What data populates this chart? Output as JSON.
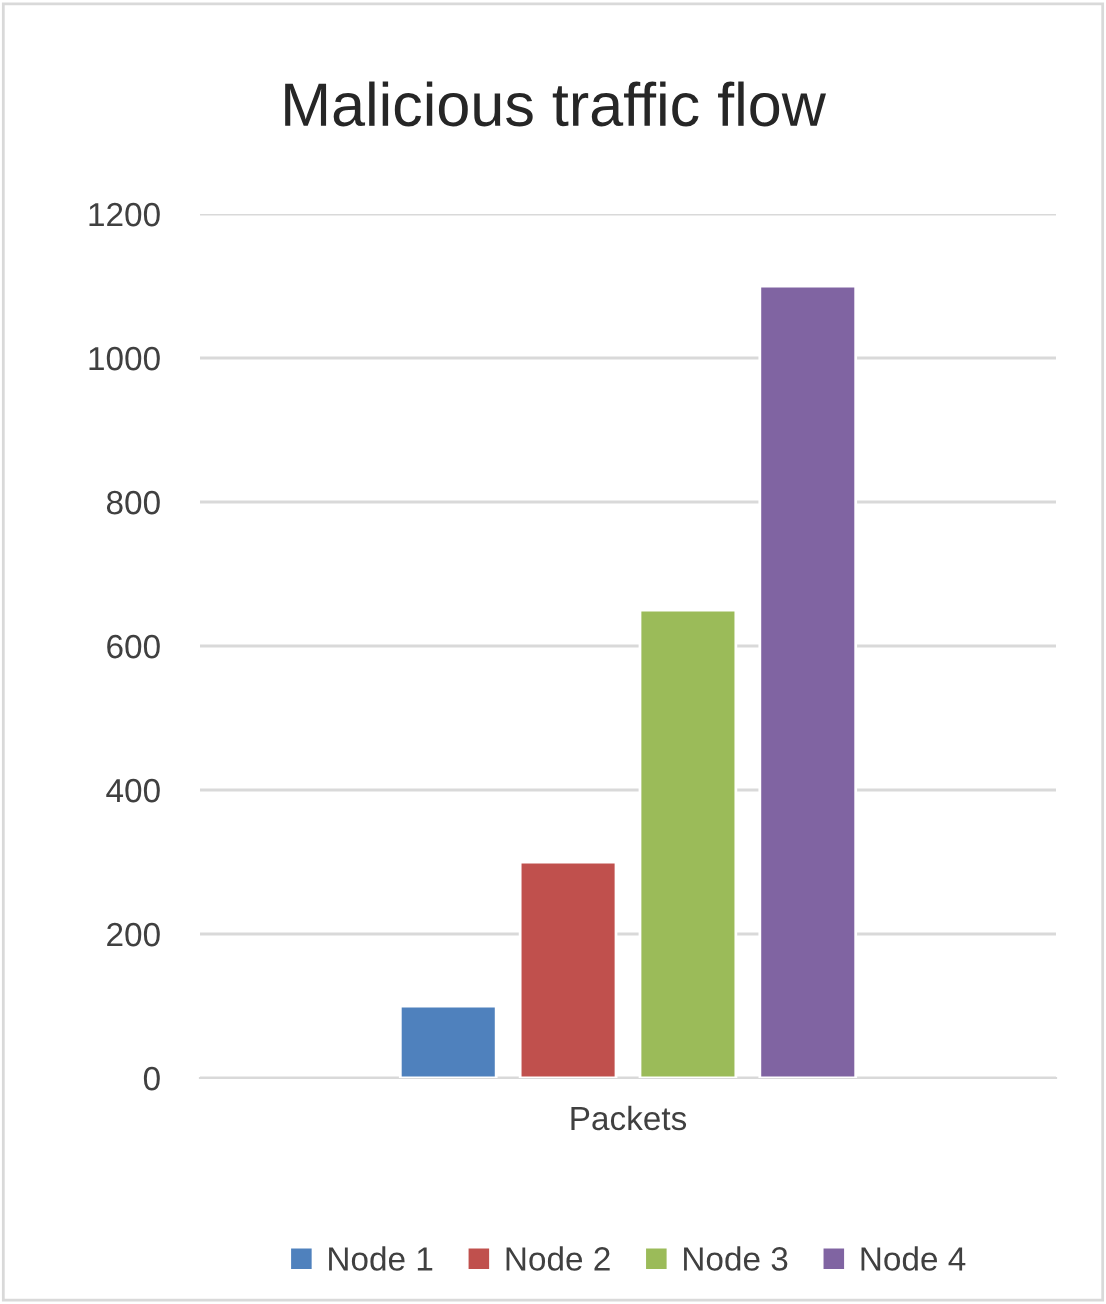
{
  "chart_data": {
    "type": "bar",
    "title": "Malicious traffic flow",
    "categories": [
      "Packets"
    ],
    "series": [
      {
        "name": "Node 1",
        "color": "#4f81bd",
        "values": [
          100
        ]
      },
      {
        "name": "Node 2",
        "color": "#c0504d",
        "values": [
          300
        ]
      },
      {
        "name": "Node 3",
        "color": "#9bbb59",
        "values": [
          650
        ]
      },
      {
        "name": "Node 4",
        "color": "#8064a2",
        "values": [
          1100
        ]
      }
    ],
    "ylim": [
      0,
      1200
    ],
    "yticks": [
      0,
      200,
      400,
      600,
      800,
      1000,
      1200
    ],
    "grid": "y",
    "legend": "bottom"
  }
}
